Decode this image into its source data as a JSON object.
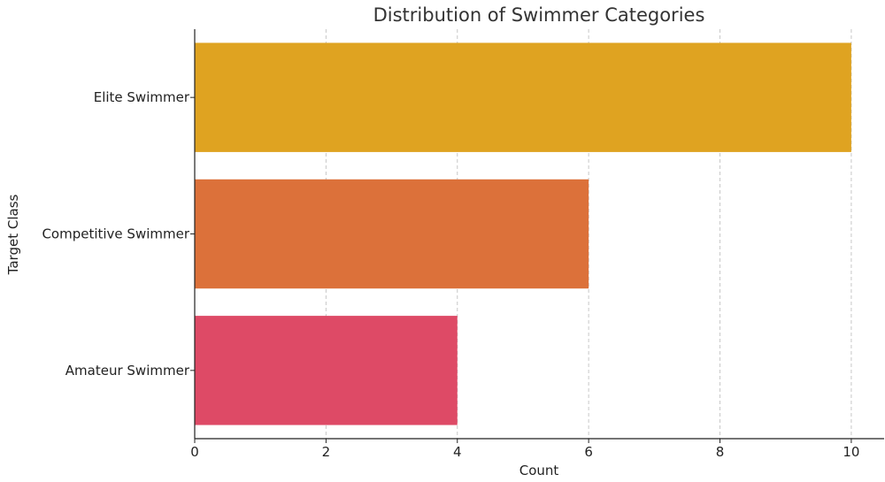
{
  "chart_data": {
    "type": "bar",
    "orientation": "horizontal",
    "title": "Distribution of Swimmer Categories",
    "xlabel": "Count",
    "ylabel": "Target Class",
    "categories": [
      "Elite Swimmer",
      "Competitive Swimmer",
      "Amateur Swimmer"
    ],
    "values": [
      10,
      6,
      4
    ],
    "colors": [
      "#DFA321",
      "#DC713A",
      "#DE4A66"
    ],
    "xlim": [
      0,
      10.5
    ],
    "xticks": [
      0,
      2,
      4,
      6,
      8,
      10
    ],
    "xtick_labels": [
      "0",
      "2",
      "4",
      "6",
      "8",
      "10"
    ],
    "grid": "vertical dashed"
  }
}
